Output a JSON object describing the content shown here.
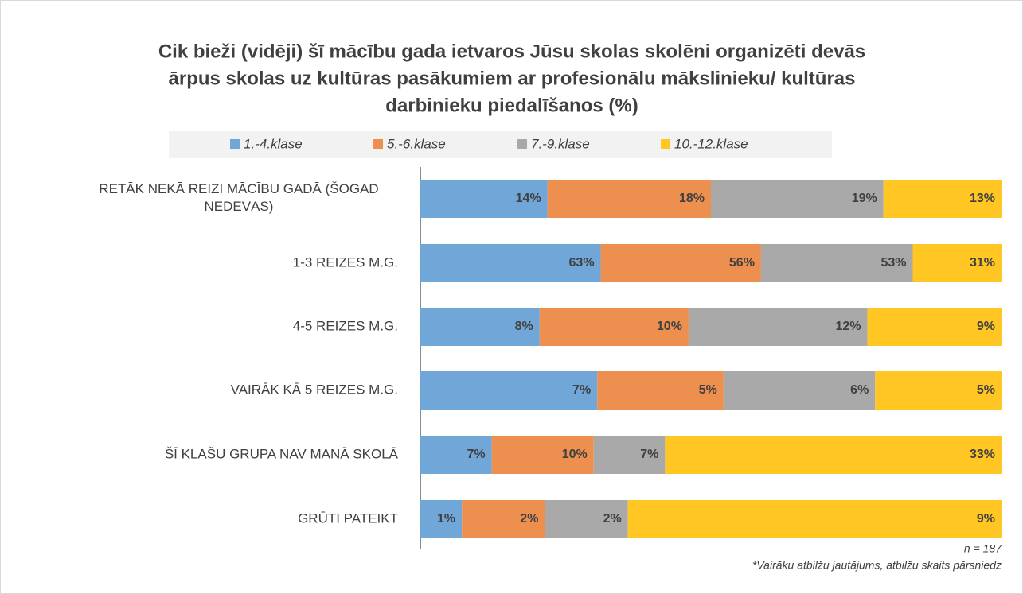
{
  "chart_data": {
    "type": "stacked_bar_100",
    "title": [
      "Cik bieži (vidēji) šī mācību gada ietvaros Jūsu skolas skolēni organizēti devās",
      "ārpus skolas uz kultūras pasākumiem ar profesionālu mākslinieku/ kultūras",
      "darbinieku piedalīšanos (%)"
    ],
    "categories": [
      "RETĀK NEKĀ REIZI MĀCĪBU GADĀ (ŠOGAD NEDEVĀS)",
      "1-3 REIZES M.G.",
      "4-5 REIZES M.G.",
      "VAIRĀK KĀ 5 REIZES M.G.",
      "ŠĪ KLAŠU GRUPA NAV MANĀ SKOLĀ",
      "GRŪTI PATEIKT"
    ],
    "series": [
      {
        "name": "1.-4.klase",
        "color": "#70a6d8",
        "values": [
          14,
          63,
          8,
          7,
          7,
          1
        ],
        "value_labels": [
          "14%",
          "63%",
          "8%",
          "7%",
          "7%",
          "1%"
        ]
      },
      {
        "name": "5.-6.klase",
        "color": "#ed8f4f",
        "values": [
          18,
          56,
          10,
          5,
          10,
          2
        ],
        "value_labels": [
          "18%",
          "56%",
          "10%",
          "5%",
          "10%",
          "2%"
        ]
      },
      {
        "name": "7.-9.klase",
        "color": "#a9a9a9",
        "values": [
          19,
          53,
          12,
          6,
          7,
          2
        ],
        "value_labels": [
          "19%",
          "53%",
          "12%",
          "6%",
          "7%",
          "2%"
        ]
      },
      {
        "name": "10.-12.klase",
        "color": "#ffc624",
        "values": [
          13,
          31,
          9,
          5,
          33,
          9
        ],
        "value_labels": [
          "13%",
          "31%",
          "9%",
          "5%",
          "33%",
          "9%"
        ]
      }
    ],
    "legend": "top",
    "notes": [
      "n = 187",
      "*Vairāku atbilžu jautājums, atbilžu skaits pārsniedz"
    ]
  }
}
